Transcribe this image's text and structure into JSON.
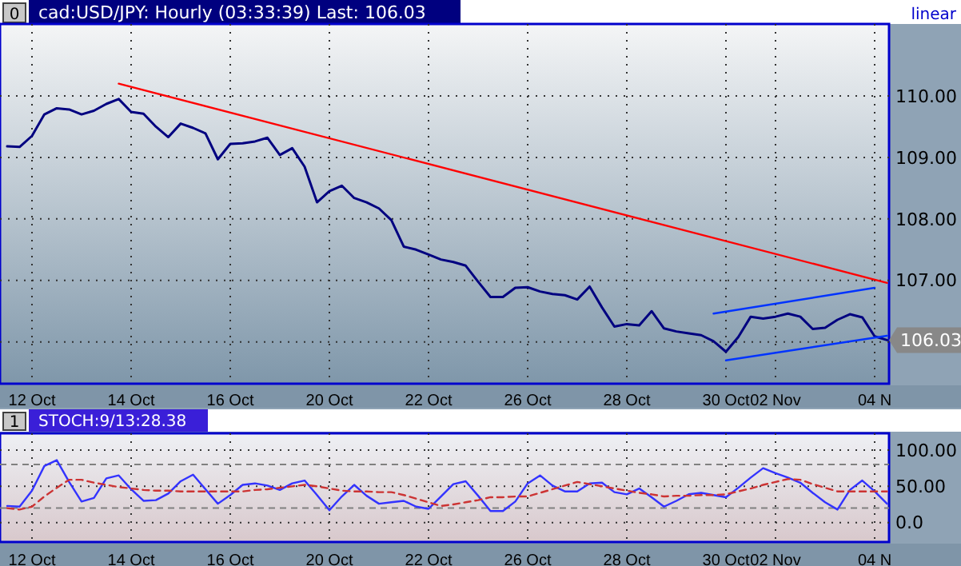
{
  "chart_data": [
    {
      "type": "line",
      "title": "cad:USD/JPY: Hourly (03:33:39) Last: 106.03",
      "annotations": [
        "0",
        "linear",
        "106.03"
      ],
      "grid": true,
      "ylim": [
        105.32,
        111.17
      ],
      "categories": [
        null,
        null,
        "12 Oct",
        null,
        null,
        null,
        null,
        null,
        null,
        null,
        "14 Oct",
        null,
        null,
        null,
        null,
        null,
        null,
        null,
        "16 Oct",
        null,
        null,
        null,
        null,
        null,
        null,
        null,
        "20 Oct",
        null,
        null,
        null,
        null,
        null,
        null,
        null,
        "22 Oct",
        null,
        null,
        null,
        null,
        null,
        null,
        null,
        "26 Oct",
        null,
        null,
        null,
        null,
        null,
        null,
        null,
        "28 Oct",
        null,
        null,
        null,
        null,
        null,
        null,
        null,
        "30 Oct",
        null,
        null,
        null,
        "02 Nov",
        null,
        null,
        null,
        null,
        null,
        null,
        null,
        "04 N",
        null
      ],
      "yticks": [
        {
          "value": 106,
          "label": null
        },
        {
          "value": 107,
          "label": "107.00"
        },
        {
          "value": 108,
          "label": "108.00"
        },
        {
          "value": 109,
          "label": "109.00"
        },
        {
          "value": 110,
          "label": "110.00"
        }
      ],
      "series": [
        {
          "color": "#000080",
          "values": [
            109.18,
            109.17,
            109.35,
            109.7,
            109.8,
            109.78,
            109.7,
            109.76,
            109.87,
            109.95,
            109.74,
            109.71,
            109.5,
            109.33,
            109.55,
            109.48,
            109.39,
            108.97,
            109.22,
            109.23,
            109.26,
            109.32,
            109.04,
            109.15,
            108.85,
            108.27,
            108.45,
            108.54,
            108.34,
            108.27,
            108.17,
            107.98,
            107.55,
            107.5,
            107.42,
            107.34,
            107.3,
            107.24,
            106.98,
            106.73,
            106.73,
            106.88,
            106.89,
            106.82,
            106.78,
            106.76,
            106.69,
            106.9,
            106.56,
            106.25,
            106.29,
            106.27,
            106.5,
            106.22,
            106.17,
            106.14,
            106.11,
            106.01,
            105.84,
            106.08,
            106.41,
            106.38,
            106.41,
            106.46,
            106.41,
            106.21,
            106.23,
            106.36,
            106.45,
            106.4,
            106.09,
            106.03
          ]
        },
        {
          "color": "#ff0000",
          "values": [
            null,
            null,
            null,
            null,
            null,
            null,
            null,
            null,
            null,
            110.2,
            null,
            null,
            null,
            null,
            null,
            null,
            null,
            null,
            null,
            null,
            null,
            null,
            null,
            null,
            null,
            null,
            null,
            null,
            null,
            null,
            null,
            null,
            null,
            null,
            null,
            null,
            null,
            null,
            null,
            null,
            null,
            null,
            null,
            null,
            null,
            null,
            null,
            null,
            null,
            null,
            null,
            null,
            null,
            null,
            null,
            null,
            null,
            null,
            null,
            null,
            null,
            null,
            null,
            null,
            null,
            null,
            null,
            null,
            null,
            null,
            null,
            106.96
          ]
        },
        {
          "color": "#0033ff",
          "values": [
            null,
            null,
            null,
            null,
            null,
            null,
            null,
            null,
            null,
            null,
            null,
            null,
            null,
            null,
            null,
            null,
            null,
            null,
            null,
            null,
            null,
            null,
            null,
            null,
            null,
            null,
            null,
            null,
            null,
            null,
            null,
            null,
            null,
            null,
            null,
            null,
            null,
            null,
            null,
            null,
            null,
            null,
            null,
            null,
            null,
            null,
            null,
            null,
            null,
            null,
            null,
            null,
            null,
            null,
            null,
            null,
            null,
            106.46,
            null,
            null,
            null,
            null,
            null,
            null,
            null,
            null,
            null,
            null,
            null,
            null,
            106.88,
            null
          ]
        },
        {
          "color": "#0033ff",
          "values": [
            null,
            null,
            null,
            null,
            null,
            null,
            null,
            null,
            null,
            null,
            null,
            null,
            null,
            null,
            null,
            null,
            null,
            null,
            null,
            null,
            null,
            null,
            null,
            null,
            null,
            null,
            null,
            null,
            null,
            null,
            null,
            null,
            null,
            null,
            null,
            null,
            null,
            null,
            null,
            null,
            null,
            null,
            null,
            null,
            null,
            null,
            null,
            null,
            null,
            null,
            null,
            null,
            null,
            null,
            null,
            null,
            null,
            null,
            105.7,
            null,
            null,
            null,
            null,
            null,
            null,
            null,
            null,
            null,
            null,
            null,
            null,
            106.1
          ]
        }
      ]
    },
    {
      "type": "line",
      "title": "STOCH:9/13:28.38",
      "annotations": [
        "1"
      ],
      "grid": true,
      "ylim": [
        -26.7,
        123
      ],
      "categories": [
        null,
        null,
        "12 Oct",
        null,
        null,
        null,
        null,
        null,
        null,
        null,
        "14 Oct",
        null,
        null,
        null,
        null,
        null,
        null,
        null,
        "16 Oct",
        null,
        null,
        null,
        null,
        null,
        null,
        null,
        "20 Oct",
        null,
        null,
        null,
        null,
        null,
        null,
        null,
        "22 Oct",
        null,
        null,
        null,
        null,
        null,
        null,
        null,
        "26 Oct",
        null,
        null,
        null,
        null,
        null,
        null,
        null,
        "28 Oct",
        null,
        null,
        null,
        null,
        null,
        null,
        null,
        "30 Oct",
        null,
        null,
        null,
        "02 Nov",
        null,
        null,
        null,
        null,
        null,
        null,
        null,
        "04 N",
        null
      ],
      "yticks": [
        {
          "value": 0,
          "label": "0.0"
        },
        {
          "value": 50,
          "label": "50.00"
        },
        {
          "value": 100,
          "label": "100.00"
        }
      ],
      "ref_lines": [
        {
          "axis": "y",
          "value": 80,
          "color": "#808080",
          "line_style": "dashed"
        },
        {
          "axis": "y",
          "value": 20,
          "color": "#808080",
          "line_style": "dashed"
        }
      ],
      "series": [
        {
          "color": "#3333ff",
          "values": [
            23,
            22,
            44,
            78,
            86,
            56,
            29,
            34,
            61,
            65,
            46,
            30,
            31,
            40,
            57,
            66,
            46,
            26,
            38,
            52,
            54,
            51,
            45,
            54,
            58,
            38,
            17,
            36,
            52,
            37,
            26,
            28,
            30,
            22,
            19,
            36,
            53,
            57,
            37,
            16,
            16,
            29,
            54,
            65,
            51,
            43,
            43,
            54,
            55,
            42,
            39,
            47,
            35,
            22,
            30,
            39,
            41,
            38,
            35,
            48,
            62,
            75,
            68,
            62,
            55,
            41,
            28,
            18,
            45,
            58,
            43,
            26
          ]
        },
        {
          "color": "#cc3333",
          "line_style": "dashed",
          "values": [
            20,
            18,
            22,
            36,
            48,
            59,
            59,
            55,
            52,
            49,
            47,
            45,
            44,
            44,
            43,
            43,
            43,
            43,
            43,
            43,
            45,
            46,
            48,
            50,
            52,
            50,
            47,
            44,
            43,
            43,
            42,
            42,
            38,
            33,
            28,
            23,
            25,
            28,
            31,
            35,
            35,
            36,
            36,
            41,
            46,
            51,
            56,
            53,
            50,
            47,
            44,
            41,
            39,
            36,
            37,
            37,
            38,
            38,
            39,
            43,
            47,
            52,
            56,
            60,
            59,
            53,
            48,
            43,
            43,
            43,
            43,
            43
          ]
        }
      ]
    }
  ]
}
